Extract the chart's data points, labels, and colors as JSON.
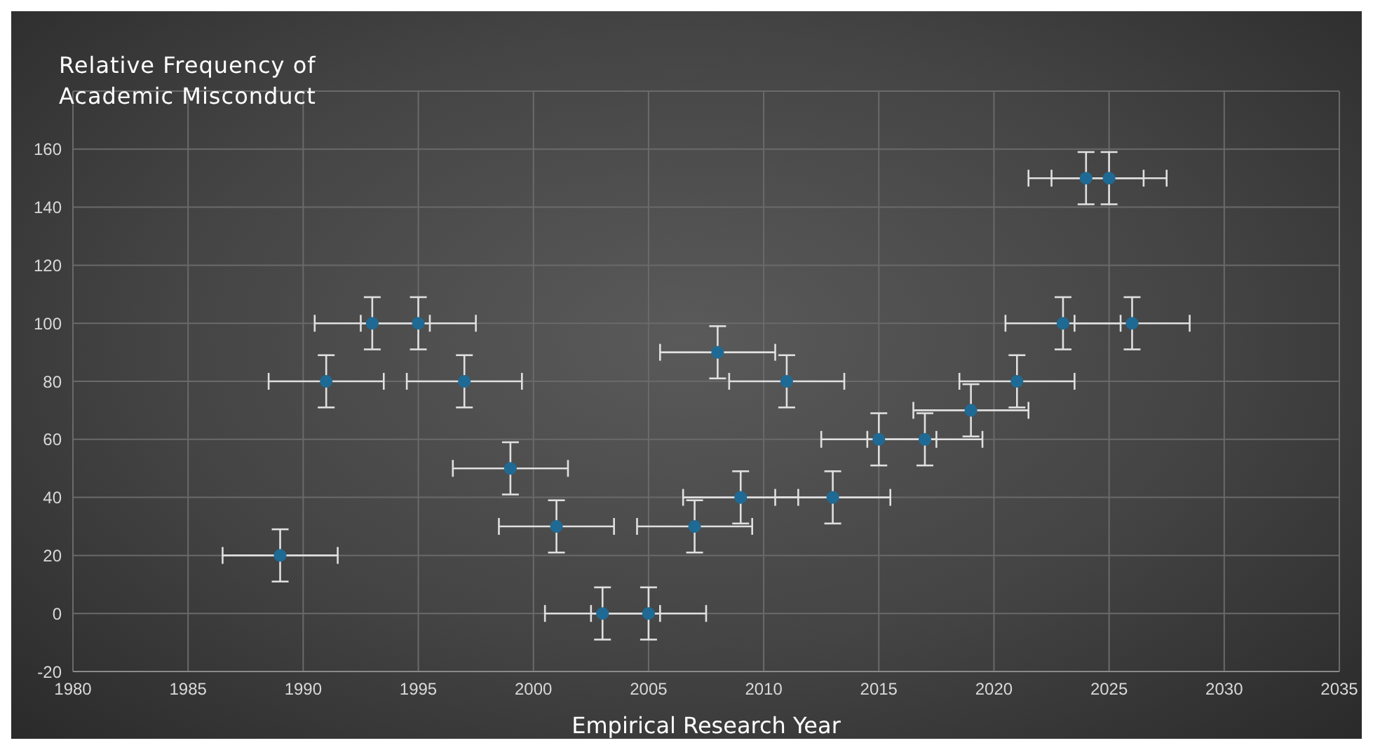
{
  "chart_data": {
    "type": "scatter",
    "title": "Relative Frequency of\nAcademic Misconduct",
    "xlabel": "Empirical Research Year",
    "x": [
      1989,
      1991,
      1993,
      1995,
      1997,
      1999,
      2001,
      2003,
      2005,
      2007,
      2008,
      2009,
      2011,
      2013,
      2015,
      2017,
      2019,
      2021,
      2023,
      2024,
      2025,
      2026
    ],
    "series": [
      {
        "color": "#1f6a94",
        "values": [
          20,
          80,
          100,
          100,
          80,
          50,
          30,
          0,
          0,
          30,
          90,
          40,
          80,
          40,
          60,
          60,
          70,
          80,
          100,
          150,
          150,
          100
        ],
        "errors": [
          9,
          9,
          9,
          9,
          9,
          9,
          9,
          9,
          9,
          9,
          9,
          9,
          9,
          9,
          9,
          9,
          9,
          9,
          9,
          9,
          9,
          9
        ],
        "xerrors": [
          2.5,
          2.5,
          2.5,
          2.5,
          2.5,
          2.5,
          2.5,
          2.5,
          2.5,
          2.5,
          2.5,
          2.5,
          2.5,
          2.5,
          2.5,
          2.5,
          2.5,
          2.5,
          2.5,
          2.5,
          2.5,
          2.5
        ]
      }
    ],
    "xlim": [
      1980,
      2035
    ],
    "xticks": [
      1980,
      1985,
      1990,
      1995,
      2000,
      2005,
      2010,
      2015,
      2020,
      2025,
      2030,
      2035
    ],
    "ylim": [
      -20,
      180
    ],
    "yticks": [
      -20,
      0,
      20,
      40,
      60,
      80,
      100,
      120,
      140,
      160,
      {
        "value": 180,
        "label": null
      }
    ],
    "grid": true,
    "marker": "circle"
  }
}
